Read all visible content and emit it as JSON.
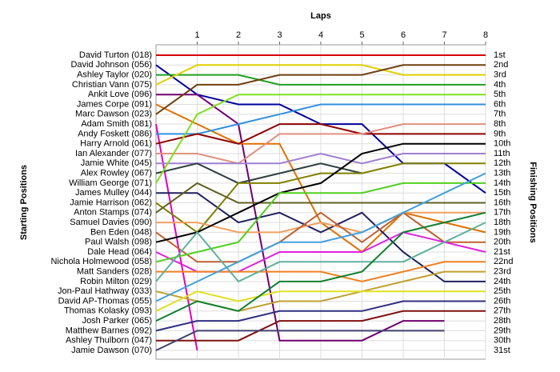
{
  "chart_data": {
    "type": "line",
    "title": "Laps",
    "ylabel": "Starting Positions",
    "y2label": "Finishing Positions",
    "xlim": [
      0,
      8
    ],
    "xticks": [
      1,
      2,
      3,
      4,
      5,
      6,
      7,
      8
    ],
    "x": [
      0,
      1,
      2,
      3,
      4,
      5,
      6,
      7,
      8
    ],
    "ylim": [
      1,
      31
    ],
    "inverted": true,
    "grid": true,
    "yticks": [
      {
        "value": 1,
        "label": "1st"
      },
      {
        "value": 2,
        "label": "2nd"
      },
      {
        "value": 3,
        "label": "3rd"
      },
      {
        "value": 4,
        "label": "4th"
      },
      {
        "value": 5,
        "label": "5th"
      },
      {
        "value": 6,
        "label": "6th"
      },
      {
        "value": 7,
        "label": "7th"
      },
      {
        "value": 8,
        "label": "8th"
      },
      {
        "value": 9,
        "label": "9th"
      },
      {
        "value": 10,
        "label": "10th"
      },
      {
        "value": 11,
        "label": "11th"
      },
      {
        "value": 12,
        "label": "12th"
      },
      {
        "value": 13,
        "label": "13th"
      },
      {
        "value": 14,
        "label": "14th"
      },
      {
        "value": 15,
        "label": "15th"
      },
      {
        "value": 16,
        "label": "16th"
      },
      {
        "value": 17,
        "label": "17th"
      },
      {
        "value": 18,
        "label": "18th"
      },
      {
        "value": 19,
        "label": "19th"
      },
      {
        "value": 20,
        "label": "20th"
      },
      {
        "value": 21,
        "label": "21st"
      },
      {
        "value": 22,
        "label": "22nd"
      },
      {
        "value": 23,
        "label": "23rd"
      },
      {
        "value": 24,
        "label": "24th"
      },
      {
        "value": 25,
        "label": "25th"
      },
      {
        "value": 26,
        "label": "26th"
      },
      {
        "value": 27,
        "label": "27th"
      },
      {
        "value": 28,
        "label": "28th"
      },
      {
        "value": 29,
        "label": "29th"
      },
      {
        "value": 30,
        "label": "30th"
      },
      {
        "value": 31,
        "label": "31st"
      }
    ],
    "series": [
      {
        "name": "David Turton (018)",
        "color": "#d40000",
        "values": [
          1,
          1,
          1,
          1,
          1,
          1,
          1,
          1,
          1
        ]
      },
      {
        "name": "David Johnson (056)",
        "color": "#0000a0",
        "values": [
          2,
          5,
          6,
          6,
          8,
          8,
          12,
          12,
          15
        ]
      },
      {
        "name": "Ashley Taylor (020)",
        "color": "#20a020",
        "values": [
          3,
          3,
          3,
          4,
          4,
          4,
          4,
          4,
          4
        ]
      },
      {
        "name": "Christian Vann (075)",
        "color": "#e0d000",
        "values": [
          4,
          2,
          2,
          2,
          2,
          2,
          3,
          3,
          3
        ]
      },
      {
        "name": "Ankit Love (096)",
        "color": "#700070",
        "values": [
          5,
          5,
          8,
          30,
          30,
          30,
          28,
          28,
          null
        ]
      },
      {
        "name": "James Corpe (091)",
        "color": "#e07000",
        "values": [
          6,
          8,
          10,
          10,
          18,
          21,
          17,
          18,
          19
        ]
      },
      {
        "name": "Marc Dawson (023)",
        "color": "#704010",
        "values": [
          7,
          4,
          4,
          3,
          3,
          3,
          2,
          2,
          2
        ]
      },
      {
        "name": "Adam Smith (081)",
        "color": "#e000c0",
        "values": [
          8,
          31,
          null,
          null,
          null,
          null,
          null,
          null,
          null
        ]
      },
      {
        "name": "Andy Foskett (086)",
        "color": "#3090e0",
        "values": [
          9,
          9,
          8,
          7,
          6,
          6,
          6,
          6,
          6
        ]
      },
      {
        "name": "Harry Arnold (061)",
        "color": "#900000",
        "values": [
          10,
          9,
          10,
          8,
          8,
          9,
          9,
          9,
          9
        ]
      },
      {
        "name": "Ian Alexander (077)",
        "color": "#e09080",
        "values": [
          11,
          11,
          12,
          9,
          9,
          9,
          8,
          8,
          8
        ]
      },
      {
        "name": "Jamie White (045)",
        "color": "#a080d0",
        "values": [
          12,
          12,
          12,
          12,
          11,
          12,
          11,
          11,
          11
        ]
      },
      {
        "name": "Alex Rowley (067)",
        "color": "#304040",
        "values": [
          13,
          12,
          14,
          13,
          12,
          13,
          null,
          null,
          null
        ]
      },
      {
        "name": "William George (071)",
        "color": "#80e020",
        "values": [
          14,
          7,
          5,
          5,
          5,
          5,
          5,
          5,
          5
        ]
      },
      {
        "name": "James Mulley (044)",
        "color": "#202060",
        "values": [
          15,
          15,
          18,
          17,
          19,
          17,
          21,
          24,
          24
        ]
      },
      {
        "name": "Jamie Harrison (062)",
        "color": "#808000",
        "values": [
          16,
          19,
          14,
          14,
          13,
          13,
          12,
          12,
          12
        ]
      },
      {
        "name": "Anton Stamps (074)",
        "color": "#606020",
        "values": [
          17,
          14,
          16,
          16,
          16,
          16,
          16,
          16,
          16
        ]
      },
      {
        "name": "Samuel Davies (090)",
        "color": "#f0a060",
        "values": [
          18,
          18,
          19,
          19,
          18,
          19,
          17,
          17,
          17
        ]
      },
      {
        "name": "Ben Eden (048)",
        "color": "#c06030",
        "values": [
          19,
          22,
          22,
          20,
          17,
          20,
          17,
          20,
          20
        ]
      },
      {
        "name": "Paul Walsh (098)",
        "color": "#000000",
        "values": [
          20,
          19,
          17,
          15,
          14,
          11,
          10,
          10,
          10
        ]
      },
      {
        "name": "Dale Head (064)",
        "color": "#e020e0",
        "values": [
          21,
          23,
          23,
          21,
          21,
          21,
          19,
          20,
          21
        ]
      },
      {
        "name": "Nichola Holmewood (058)",
        "color": "#50d020",
        "values": [
          22,
          21,
          20,
          15,
          15,
          15,
          14,
          14,
          14
        ]
      },
      {
        "name": "Matt Sanders (028)",
        "color": "#f08020",
        "values": [
          23,
          23,
          23,
          23,
          23,
          24,
          23,
          22,
          22
        ]
      },
      {
        "name": "Robin Milton (029)",
        "color": "#60b0a0",
        "values": [
          24,
          19,
          24,
          22,
          22,
          22,
          22,
          20,
          18
        ]
      },
      {
        "name": "Jon-Paul Hathway (033)",
        "color": "#c0a030",
        "values": [
          25,
          26,
          27,
          26,
          26,
          25,
          24,
          23,
          23
        ]
      },
      {
        "name": "David AP-Thomas (055)",
        "color": "#40a0e0",
        "values": [
          26,
          24,
          22,
          20,
          20,
          19,
          17,
          15,
          13
        ]
      },
      {
        "name": "Thomas Kolasky (093)",
        "color": "#e0e020",
        "values": [
          27,
          25,
          26,
          25,
          25,
          25,
          25,
          25,
          25
        ]
      },
      {
        "name": "Josh Parker (065)",
        "color": "#108030",
        "values": [
          28,
          26,
          27,
          24,
          24,
          23,
          19,
          18,
          17
        ]
      },
      {
        "name": "Matthew Barnes (092)",
        "color": "#303080",
        "values": [
          29,
          28,
          28,
          27,
          27,
          27,
          26,
          26,
          26
        ]
      },
      {
        "name": "Ashley Thulborn (047)",
        "color": "#801010",
        "values": [
          30,
          30,
          30,
          28,
          28,
          28,
          27,
          27,
          27
        ]
      },
      {
        "name": "Jamie Dawson (070)",
        "color": "#404070",
        "values": [
          31,
          29,
          29,
          29,
          29,
          29,
          29,
          29,
          null
        ]
      }
    ]
  }
}
